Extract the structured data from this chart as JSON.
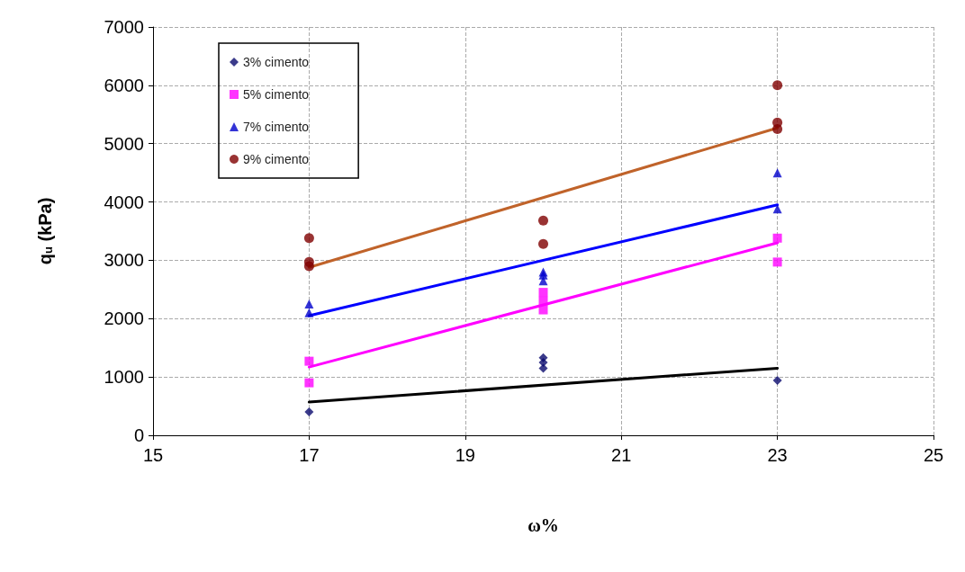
{
  "chart_data": {
    "type": "scatter",
    "xlabel": "ω%",
    "ylabel": "q$_{u}$ (kPa)",
    "xlim": [
      15,
      25
    ],
    "xticks": [
      15,
      17,
      19,
      21,
      23,
      25
    ],
    "ylim": [
      0,
      7000
    ],
    "yticks": [
      0,
      1000,
      2000,
      3000,
      4000,
      5000,
      6000,
      7000
    ],
    "grid": true,
    "legend": "top left",
    "series": [
      {
        "name": "3% cimento",
        "color": "#0a0a6e",
        "marker": "diamond",
        "x": [
          17,
          20,
          20,
          20,
          23
        ],
        "values": [
          400,
          1150,
          1250,
          1330,
          940
        ]
      },
      {
        "name": "5% cimento",
        "color": "#ff00ff",
        "marker": "square",
        "x": [
          17,
          17,
          20,
          20,
          20,
          23,
          23
        ],
        "values": [
          900,
          1270,
          2150,
          2300,
          2450,
          3380,
          2970
        ]
      },
      {
        "name": "7% cimento",
        "color": "#0000cc",
        "marker": "triangle",
        "x": [
          17,
          17,
          20,
          20,
          20,
          23,
          23
        ],
        "values": [
          2100,
          2250,
          2650,
          2750,
          2800,
          4500,
          3880
        ]
      },
      {
        "name": "9% cimento",
        "color": "#800000",
        "marker": "circle",
        "x": [
          17,
          17,
          17,
          20,
          20,
          23,
          23,
          23
        ],
        "values": [
          3380,
          2970,
          2900,
          3680,
          3280,
          6000,
          5360,
          5250
        ]
      },
      {
        "type": "line",
        "color": "#000000",
        "marker": "none",
        "x": [
          17,
          23
        ],
        "values": [
          570,
          1150
        ]
      },
      {
        "type": "line",
        "color": "#ff00ff",
        "marker": "none",
        "x": [
          17,
          23
        ],
        "values": [
          1170,
          3300
        ]
      },
      {
        "type": "line",
        "color": "#0000ff",
        "marker": "none",
        "x": [
          17,
          23
        ],
        "values": [
          2050,
          3950
        ]
      },
      {
        "type": "line",
        "color": "#c0632a",
        "marker": "none",
        "x": [
          17,
          23
        ],
        "values": [
          2880,
          5270
        ]
      }
    ]
  }
}
